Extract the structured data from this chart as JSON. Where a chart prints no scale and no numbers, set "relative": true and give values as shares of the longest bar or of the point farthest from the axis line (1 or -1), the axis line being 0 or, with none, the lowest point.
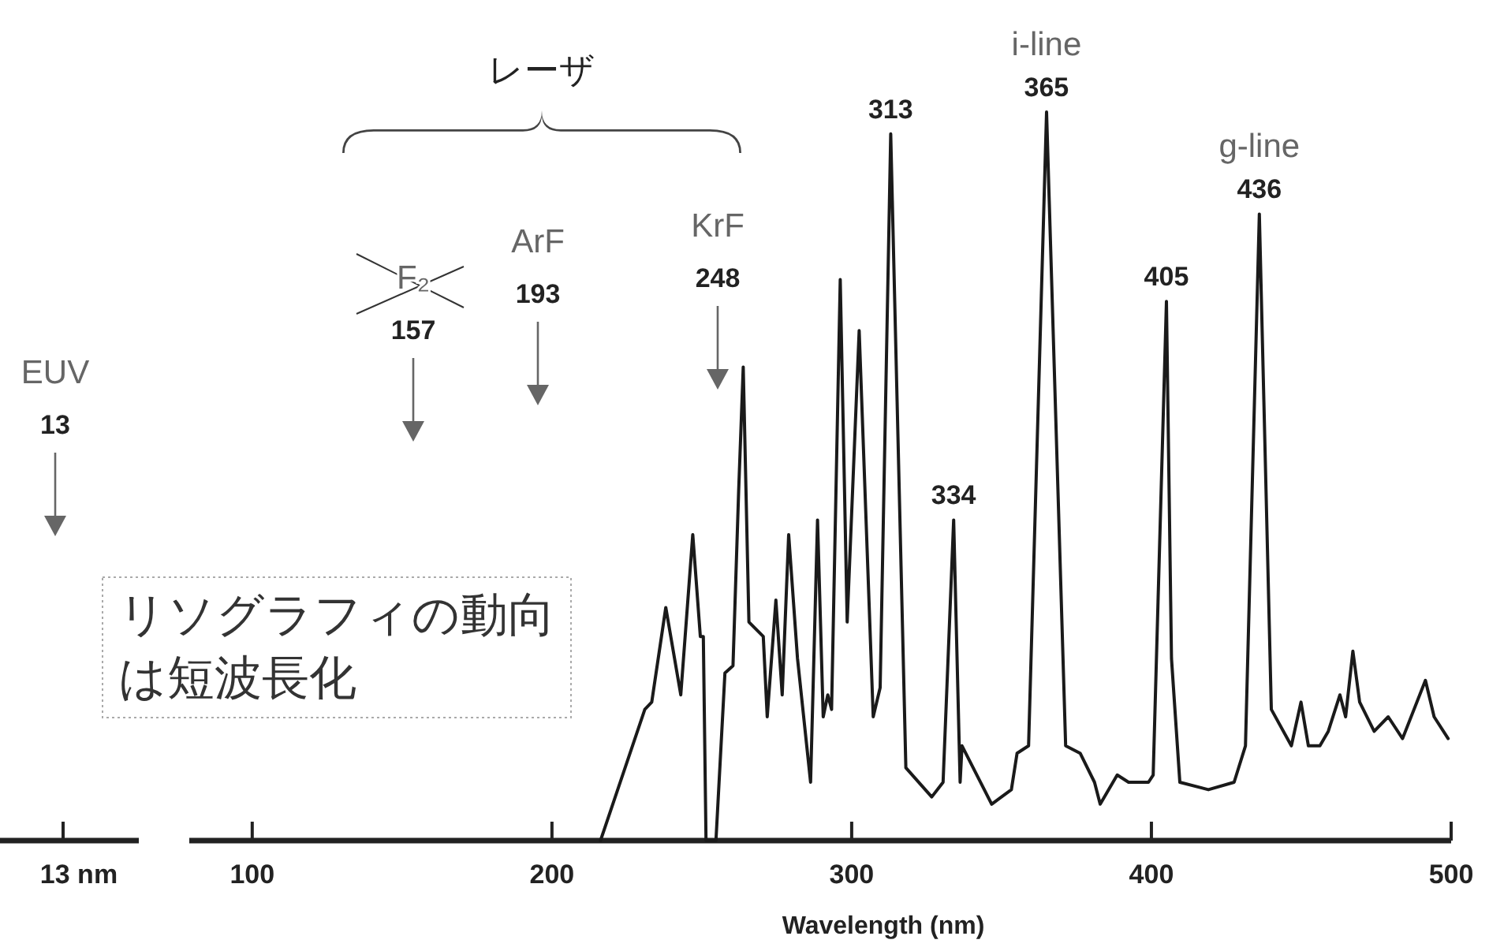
{
  "chart_data": [
    {
      "type": "other",
      "annotations": [
        "EUV\n13",
        "13 nm"
      ]
    },
    {
      "type": "line",
      "relative": true,
      "xlim": [
        79,
        500
      ],
      "xticks": [
        100,
        200,
        300,
        400,
        500
      ],
      "xlabel": "Wavelength (nm)",
      "series": [
        {
          "color": "#1a1a1a",
          "x": [
            216.2,
            231,
            233.3,
            238,
            243,
            247,
            249.5,
            250.5,
            251.4,
            254.7,
            257.7,
            260.4,
            262.3,
            263.8,
            265.7,
            270.5,
            271.8,
            274.7,
            276.8,
            279,
            281.9,
            286.3,
            288.6,
            290.5,
            292,
            293.3,
            296.2,
            298.5,
            302.5,
            307.2,
            309.5,
            313,
            318.1,
            326.7,
            330.5,
            334,
            336.2,
            336.8,
            346.7,
            353.3,
            355.2,
            359,
            365,
            371.4,
            376.2,
            381,
            382.9,
            388.6,
            392.4,
            399,
            400.6,
            405,
            406.7,
            409.5,
            419,
            427.6,
            431.4,
            436,
            440,
            446.7,
            449.9,
            452.4,
            456.2,
            459,
            462.9,
            464.8,
            467.2,
            469.5,
            474.3,
            479,
            483.8,
            491.4,
            494.3,
            499
          ],
          "values": [
            0,
            0.18,
            0.19,
            0.32,
            0.2,
            0.42,
            0.28,
            0.28,
            0,
            0,
            0.23,
            0.24,
            0.48,
            0.65,
            0.3,
            0.28,
            0.17,
            0.33,
            0.2,
            0.42,
            0.25,
            0.08,
            0.44,
            0.17,
            0.2,
            0.18,
            0.77,
            0.3,
            0.7,
            0.17,
            0.21,
            0.97,
            0.1,
            0.06,
            0.08,
            0.44,
            0.08,
            0.13,
            0.05,
            0.07,
            0.12,
            0.13,
            1,
            0.13,
            0.12,
            0.08,
            0.05,
            0.09,
            0.08,
            0.08,
            0.09,
            0.74,
            0.25,
            0.08,
            0.07,
            0.08,
            0.13,
            0.86,
            0.18,
            0.13,
            0.19,
            0.13,
            0.13,
            0.15,
            0.2,
            0.17,
            0.26,
            0.19,
            0.15,
            0.17,
            0.14,
            0.22,
            0.17,
            0.14
          ]
        }
      ],
      "annotations": [
        "レーザ",
        "リソグラフィの動向は短波長化",
        "F₂\n157",
        "ArF\n193",
        "KrF\n248",
        {
          "text": "313",
          "x": 313,
          "y": 0.97
        },
        {
          "text": "334",
          "x": 334,
          "y": 0.44
        },
        {
          "text": "i-line\n365",
          "x": 365,
          "y": 1
        },
        {
          "text": "405",
          "x": 405,
          "y": 0.74
        },
        {
          "text": "g-line\n436",
          "x": 436,
          "y": 0.86
        }
      ]
    }
  ]
}
